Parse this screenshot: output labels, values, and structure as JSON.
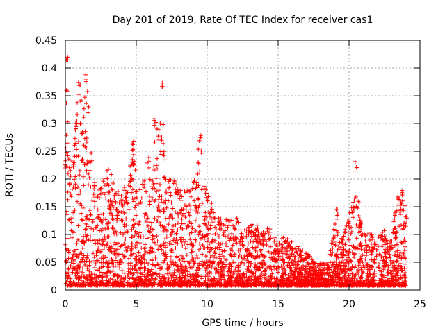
{
  "chart_data": {
    "type": "scatter",
    "title": "Day 201 of 2019, Rate Of TEC Index for receiver cas1",
    "xlabel": "GPS time / hours",
    "ylabel": "ROTI / TECUs",
    "xlim": [
      0,
      25
    ],
    "ylim": [
      0,
      0.45
    ],
    "x_ticks": [
      0,
      5,
      10,
      15,
      20,
      25
    ],
    "y_ticks": [
      0,
      0.05,
      0.1,
      0.15,
      0.2,
      0.25,
      0.3,
      0.35,
      0.4,
      0.45
    ],
    "x_tick_labels": [
      "0",
      "5",
      "10",
      "15",
      "20",
      "25"
    ],
    "y_tick_labels": [
      "0",
      "0.05",
      "0.1",
      "0.15",
      "0.2",
      "0.25",
      "0.3",
      "0.35",
      "0.4",
      "0.45"
    ],
    "grid": true,
    "marker": "+",
    "series": [
      {
        "name": "ROTI",
        "color": "#ff0000",
        "envelope": [
          [
            0.0,
            0.23
          ],
          [
            0.1,
            0.42
          ],
          [
            0.3,
            0.2
          ],
          [
            0.5,
            0.24
          ],
          [
            0.7,
            0.3
          ],
          [
            1.0,
            0.38
          ],
          [
            1.2,
            0.3
          ],
          [
            1.5,
            0.39
          ],
          [
            1.8,
            0.25
          ],
          [
            2.0,
            0.2
          ],
          [
            2.5,
            0.19
          ],
          [
            3.0,
            0.22
          ],
          [
            3.5,
            0.18
          ],
          [
            4.0,
            0.17
          ],
          [
            4.5,
            0.2
          ],
          [
            4.8,
            0.28
          ],
          [
            5.0,
            0.18
          ],
          [
            5.5,
            0.2
          ],
          [
            5.9,
            0.24
          ],
          [
            6.1,
            0.2
          ],
          [
            6.3,
            0.31
          ],
          [
            6.6,
            0.29
          ],
          [
            6.8,
            0.38
          ],
          [
            7.0,
            0.25
          ],
          [
            7.3,
            0.2
          ],
          [
            7.8,
            0.19
          ],
          [
            8.2,
            0.18
          ],
          [
            8.8,
            0.17
          ],
          [
            9.2,
            0.2
          ],
          [
            9.5,
            0.28
          ],
          [
            9.8,
            0.19
          ],
          [
            10.0,
            0.18
          ],
          [
            10.3,
            0.15
          ],
          [
            10.8,
            0.13
          ],
          [
            11.5,
            0.12
          ],
          [
            12.0,
            0.13
          ],
          [
            12.5,
            0.1
          ],
          [
            13.0,
            0.12
          ],
          [
            13.5,
            0.11
          ],
          [
            14.0,
            0.1
          ],
          [
            14.5,
            0.11
          ],
          [
            15.0,
            0.08
          ],
          [
            15.5,
            0.09
          ],
          [
            16.0,
            0.08
          ],
          [
            16.5,
            0.07
          ],
          [
            17.0,
            0.06
          ],
          [
            17.5,
            0.05
          ],
          [
            18.0,
            0.04
          ],
          [
            18.5,
            0.05
          ],
          [
            18.9,
            0.1
          ],
          [
            19.1,
            0.15
          ],
          [
            19.5,
            0.08
          ],
          [
            20.0,
            0.13
          ],
          [
            20.3,
            0.16
          ],
          [
            20.5,
            0.24
          ],
          [
            20.8,
            0.13
          ],
          [
            21.2,
            0.09
          ],
          [
            21.6,
            0.1
          ],
          [
            22.0,
            0.08
          ],
          [
            22.3,
            0.11
          ],
          [
            22.8,
            0.08
          ],
          [
            23.2,
            0.13
          ],
          [
            23.5,
            0.17
          ],
          [
            23.8,
            0.18
          ],
          [
            24.0,
            0.14
          ]
        ]
      }
    ]
  }
}
